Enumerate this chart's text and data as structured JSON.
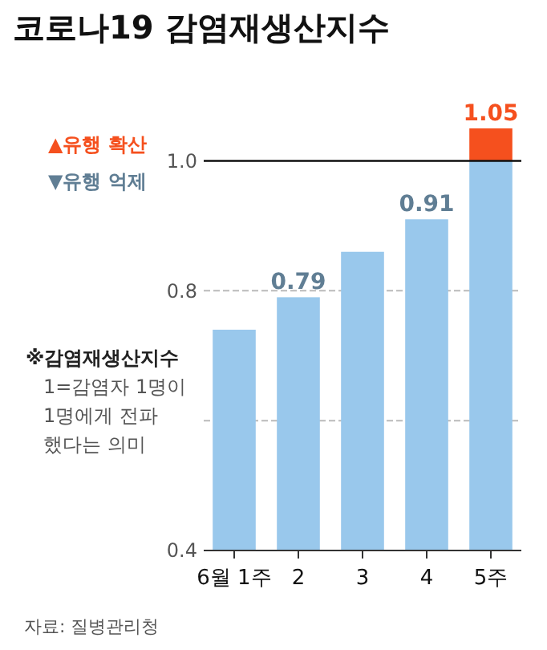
{
  "chart_data": {
    "type": "bar",
    "title": "코로나19 감염재생산지수",
    "categories": [
      "6월 1주",
      "2",
      "3",
      "4",
      "5주"
    ],
    "color": "#99c8ec",
    "colors": [
      "#99c8ec",
      "#99c8ec",
      "#99c8ec",
      "#99c8ec",
      "#f5501e"
    ],
    "values": [
      0.74,
      0.79,
      0.86,
      0.91,
      1.05
    ],
    "value_labels": [
      null,
      "0.79",
      null,
      "0.91",
      "1.05"
    ],
    "ylim": [
      0.4,
      1.05
    ],
    "yticks": [
      {
        "value": 0.4,
        "label": "0.4"
      },
      {
        "value": 0.6,
        "label": null
      },
      {
        "value": 0.8,
        "label": "0.8"
      },
      {
        "value": 1.0,
        "label": "1.0"
      }
    ],
    "grid": "y",
    "ref_lines": [
      {
        "axis": "y",
        "value": 1.0,
        "label": "▲유행 확산",
        "color": "#111111"
      }
    ],
    "annotations": [
      "▼유행 억제",
      "※감염재생산지수",
      "1=감염자 1명이",
      "1명에게 전파",
      "했다는 의미",
      "자료: 질병관리청"
    ]
  }
}
